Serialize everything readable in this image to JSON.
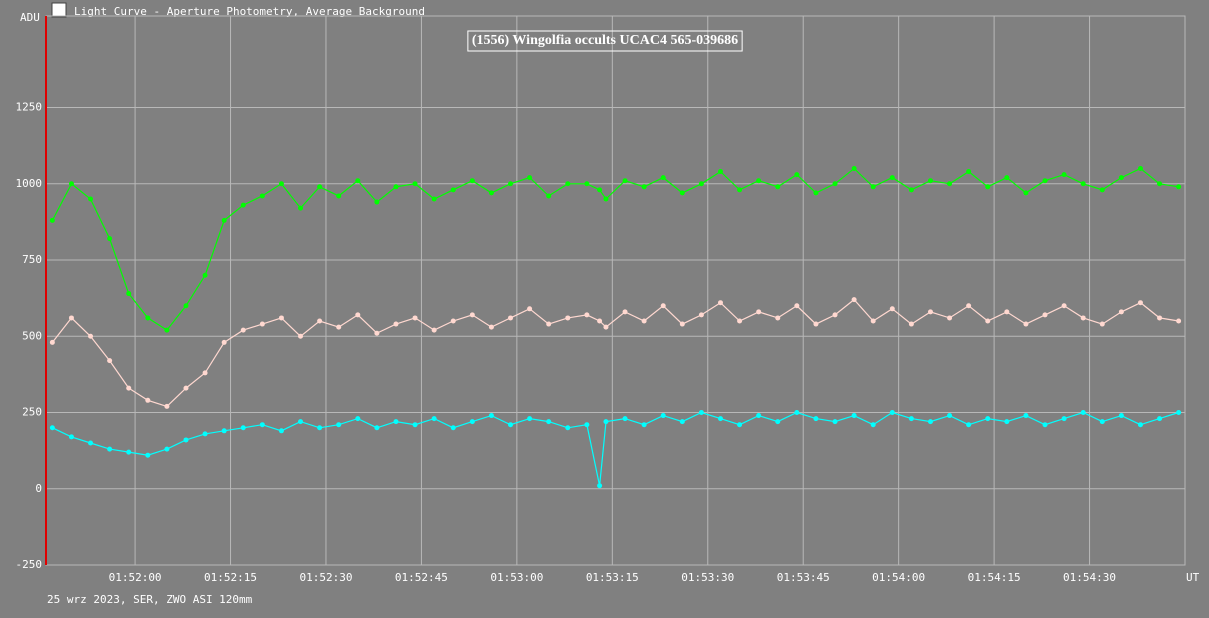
{
  "window_title": "Light Curve - Aperture Photometry, Average Background",
  "chart_data": {
    "type": "line",
    "title": "(1556) Wingolfia occults UCAC4 565-039686",
    "y_label": "ADU",
    "x_label": "UT",
    "footer": "25 wrz 2023, SER, ZWO ASI 120mm",
    "x": [
      "01:51:47",
      "01:51:50",
      "01:51:53",
      "01:51:56",
      "01:51:59",
      "01:52:02",
      "01:52:05",
      "01:52:08",
      "01:52:11",
      "01:52:14",
      "01:52:17",
      "01:52:20",
      "01:52:23",
      "01:52:26",
      "01:52:29",
      "01:52:32",
      "01:52:35",
      "01:52:38",
      "01:52:41",
      "01:52:44",
      "01:52:47",
      "01:52:50",
      "01:52:53",
      "01:52:56",
      "01:52:59",
      "01:53:02",
      "01:53:05",
      "01:53:08",
      "01:53:11",
      "01:53:13",
      "01:53:14",
      "01:53:17",
      "01:53:20",
      "01:53:23",
      "01:53:26",
      "01:53:29",
      "01:53:32",
      "01:53:35",
      "01:53:38",
      "01:53:41",
      "01:53:44",
      "01:53:47",
      "01:53:50",
      "01:53:53",
      "01:53:56",
      "01:53:59",
      "01:54:02",
      "01:54:05",
      "01:54:08",
      "01:54:11",
      "01:54:14",
      "01:54:17",
      "01:54:20",
      "01:54:23",
      "01:54:26",
      "01:54:29",
      "01:54:32",
      "01:54:35",
      "01:54:38",
      "01:54:41",
      "01:54:44"
    ],
    "series": [
      {
        "color": "#00ff00",
        "values": [
          880,
          1000,
          950,
          820,
          640,
          560,
          520,
          600,
          700,
          880,
          930,
          960,
          1000,
          920,
          990,
          960,
          1010,
          940,
          990,
          1000,
          950,
          980,
          1010,
          970,
          1000,
          1020,
          960,
          1000,
          1000,
          980,
          950,
          1010,
          990,
          1020,
          970,
          1000,
          1040,
          980,
          1010,
          990,
          1030,
          970,
          1000,
          1050,
          990,
          1020,
          980,
          1010,
          1000,
          1040,
          990,
          1020,
          970,
          1010,
          1030,
          1000,
          980,
          1020,
          1050,
          1000,
          990
        ]
      },
      {
        "color": "#ffd8d0",
        "values": [
          480,
          560,
          500,
          420,
          330,
          290,
          270,
          330,
          380,
          480,
          520,
          540,
          560,
          500,
          550,
          530,
          570,
          510,
          540,
          560,
          520,
          550,
          570,
          530,
          560,
          590,
          540,
          560,
          570,
          550,
          530,
          580,
          550,
          600,
          540,
          570,
          610,
          550,
          580,
          560,
          600,
          540,
          570,
          620,
          550,
          590,
          540,
          580,
          560,
          600,
          550,
          580,
          540,
          570,
          600,
          560,
          540,
          580,
          610,
          560,
          550
        ]
      },
      {
        "color": "#00ffff",
        "values": [
          200,
          170,
          150,
          130,
          120,
          110,
          130,
          160,
          180,
          190,
          200,
          210,
          190,
          220,
          200,
          210,
          230,
          200,
          220,
          210,
          230,
          200,
          220,
          240,
          210,
          230,
          220,
          200,
          210,
          10,
          220,
          230,
          210,
          240,
          220,
          250,
          230,
          210,
          240,
          220,
          250,
          230,
          220,
          240,
          210,
          250,
          230,
          220,
          240,
          210,
          230,
          220,
          240,
          210,
          230,
          250,
          220,
          240,
          210,
          230,
          250
        ]
      }
    ],
    "xlim": [
      "01:51:46",
      "01:54:45"
    ],
    "xticks": [
      "01:52:00",
      "01:52:15",
      "01:52:30",
      "01:52:45",
      "01:53:00",
      "01:53:15",
      "01:53:30",
      "01:53:45",
      "01:54:00",
      "01:54:15",
      "01:54:30"
    ],
    "ylim": [
      -250,
      1550
    ],
    "yticks": [
      -250,
      0,
      250,
      500,
      750,
      1000,
      1250
    ],
    "grid": true
  }
}
